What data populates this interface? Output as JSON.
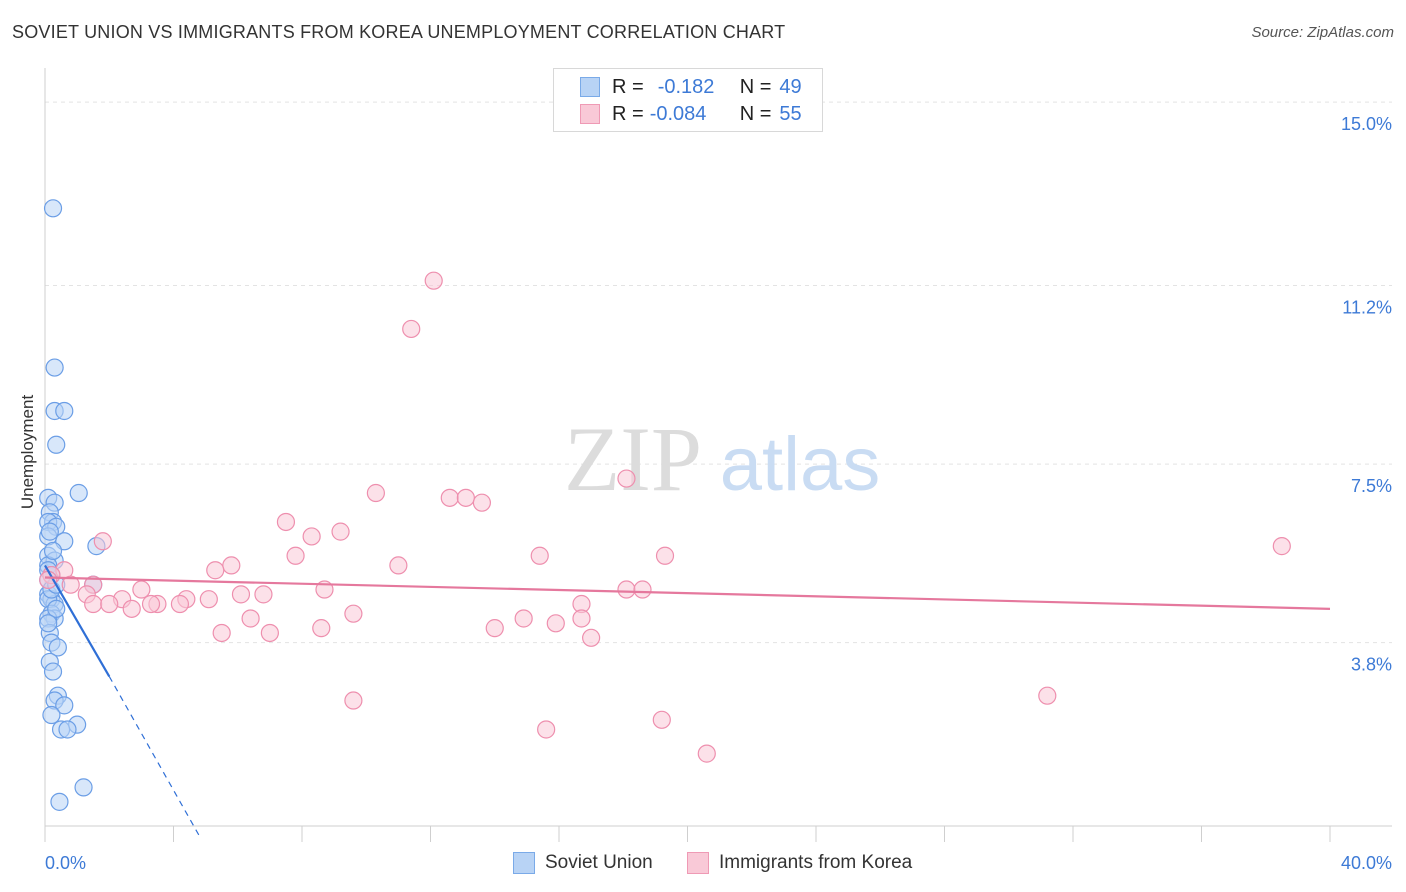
{
  "header": {
    "title": "SOVIET UNION VS IMMIGRANTS FROM KOREA UNEMPLOYMENT CORRELATION CHART",
    "source": "Source: ZipAtlas.com"
  },
  "watermark": {
    "zip": "ZIP",
    "atlas": "atlas"
  },
  "legend": {
    "r_label": "R =",
    "n_label": "N =",
    "series": [
      {
        "r": "-0.182",
        "n": "49",
        "color": "#7aaae8",
        "fill": "#b8d3f5"
      },
      {
        "r": "-0.084",
        "n": "55",
        "color": "#ef9ab5",
        "fill": "#f9c9d7"
      }
    ]
  },
  "bottom_legend": [
    "Soviet Union",
    "Immigrants from Korea"
  ],
  "chart_data": {
    "type": "scatter",
    "title": "SOVIET UNION VS IMMIGRANTS FROM KOREA UNEMPLOYMENT CORRELATION CHART",
    "xlabel": "",
    "ylabel": "Unemployment",
    "xlim": [
      0,
      40
    ],
    "ylim": [
      0,
      15.5
    ],
    "x_tick_labels": [
      "0.0%",
      "40.0%"
    ],
    "y_ticks": [
      3.8,
      7.5,
      11.2,
      15.0
    ],
    "y_tick_labels": [
      "3.8%",
      "7.5%",
      "11.2%",
      "15.0%"
    ],
    "series": [
      {
        "name": "Soviet Union",
        "color": "#6b9ee6",
        "points": [
          [
            0.25,
            12.8
          ],
          [
            0.3,
            9.5
          ],
          [
            0.3,
            8.6
          ],
          [
            0.6,
            8.6
          ],
          [
            0.35,
            7.9
          ],
          [
            1.05,
            6.9
          ],
          [
            0.1,
            6.8
          ],
          [
            0.3,
            6.7
          ],
          [
            0.15,
            6.5
          ],
          [
            0.25,
            6.3
          ],
          [
            0.1,
            6.3
          ],
          [
            0.35,
            6.2
          ],
          [
            0.1,
            6.0
          ],
          [
            0.6,
            5.9
          ],
          [
            1.6,
            5.8
          ],
          [
            0.1,
            5.6
          ],
          [
            0.3,
            5.5
          ],
          [
            0.1,
            5.4
          ],
          [
            0.1,
            5.3
          ],
          [
            0.2,
            5.2
          ],
          [
            1.5,
            5.0
          ],
          [
            0.1,
            4.8
          ],
          [
            0.2,
            4.7
          ],
          [
            0.3,
            4.6
          ],
          [
            0.1,
            4.7
          ],
          [
            0.2,
            4.4
          ],
          [
            0.3,
            4.3
          ],
          [
            0.1,
            4.3
          ],
          [
            0.15,
            4.0
          ],
          [
            0.2,
            3.8
          ],
          [
            0.4,
            3.7
          ],
          [
            0.15,
            3.4
          ],
          [
            0.25,
            3.2
          ],
          [
            0.4,
            2.7
          ],
          [
            0.3,
            2.6
          ],
          [
            0.6,
            2.5
          ],
          [
            0.2,
            2.3
          ],
          [
            1.0,
            2.1
          ],
          [
            0.5,
            2.0
          ],
          [
            0.7,
            2.0
          ],
          [
            1.2,
            0.8
          ],
          [
            0.45,
            0.5
          ],
          [
            0.1,
            5.1
          ],
          [
            0.2,
            4.9
          ],
          [
            0.35,
            4.5
          ],
          [
            0.15,
            6.1
          ],
          [
            0.25,
            5.7
          ],
          [
            0.1,
            4.2
          ],
          [
            0.35,
            5.0
          ]
        ],
        "trend": {
          "x1": 0,
          "y1": 5.4,
          "x2": 2.0,
          "y2": 3.1,
          "dash_x2": 4.8,
          "dash_y2": -0.2
        }
      },
      {
        "name": "Immigrants from Korea",
        "color": "#ee8fae",
        "points": [
          [
            12.1,
            11.3
          ],
          [
            11.4,
            10.3
          ],
          [
            18.1,
            7.2
          ],
          [
            10.3,
            6.9
          ],
          [
            12.6,
            6.8
          ],
          [
            13.1,
            6.8
          ],
          [
            13.6,
            6.7
          ],
          [
            7.5,
            6.3
          ],
          [
            9.2,
            6.1
          ],
          [
            8.3,
            6.0
          ],
          [
            1.8,
            5.9
          ],
          [
            38.5,
            5.8
          ],
          [
            7.8,
            5.6
          ],
          [
            15.4,
            5.6
          ],
          [
            19.3,
            5.6
          ],
          [
            5.8,
            5.4
          ],
          [
            0.6,
            5.3
          ],
          [
            11.0,
            5.4
          ],
          [
            0.2,
            5.2
          ],
          [
            5.3,
            5.3
          ],
          [
            1.5,
            5.0
          ],
          [
            3.0,
            4.9
          ],
          [
            8.7,
            4.9
          ],
          [
            6.8,
            4.8
          ],
          [
            18.1,
            4.9
          ],
          [
            18.6,
            4.9
          ],
          [
            6.1,
            4.8
          ],
          [
            1.3,
            4.8
          ],
          [
            5.1,
            4.7
          ],
          [
            3.5,
            4.6
          ],
          [
            4.4,
            4.7
          ],
          [
            2.4,
            4.7
          ],
          [
            3.3,
            4.6
          ],
          [
            1.5,
            4.6
          ],
          [
            2.0,
            4.6
          ],
          [
            4.2,
            4.6
          ],
          [
            2.7,
            4.5
          ],
          [
            16.7,
            4.6
          ],
          [
            9.6,
            4.4
          ],
          [
            6.4,
            4.3
          ],
          [
            14.9,
            4.3
          ],
          [
            14.0,
            4.1
          ],
          [
            15.9,
            4.2
          ],
          [
            16.7,
            4.3
          ],
          [
            8.6,
            4.1
          ],
          [
            5.5,
            4.0
          ],
          [
            7.0,
            4.0
          ],
          [
            17.0,
            3.9
          ],
          [
            31.2,
            2.7
          ],
          [
            9.6,
            2.6
          ],
          [
            19.2,
            2.2
          ],
          [
            15.6,
            2.0
          ],
          [
            20.6,
            1.5
          ],
          [
            0.1,
            5.1
          ],
          [
            0.8,
            5.0
          ]
        ],
        "trend": {
          "x1": 0,
          "y1": 5.15,
          "x2": 40,
          "y2": 4.5
        }
      }
    ]
  }
}
